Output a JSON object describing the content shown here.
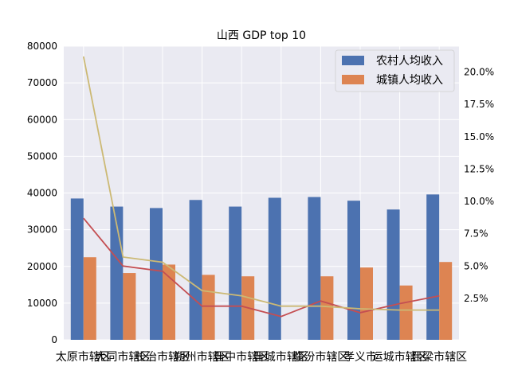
{
  "chart_data": {
    "type": "bar",
    "title": "山西 GDP top 10",
    "categories": [
      "太原市辖区",
      "大同市辖区",
      "长治市辖区",
      "朔州市辖区",
      "晋中市辖区",
      "晋城市辖区",
      "临汾市辖区",
      "孝义市",
      "运城市辖区",
      "吕梁市辖区"
    ],
    "series": [
      {
        "name": "农村人均收入",
        "axis": "left",
        "type": "bar",
        "color": "#4c72b0",
        "values": [
          38500,
          36300,
          35900,
          38100,
          36300,
          38700,
          38900,
          37900,
          35500,
          39600
        ]
      },
      {
        "name": "城镇人均收入",
        "axis": "left",
        "type": "bar",
        "color": "#dd8452",
        "values": [
          22500,
          18200,
          20500,
          17700,
          17300,
          null,
          17300,
          19700,
          14800,
          21200
        ]
      },
      {
        "type": "line",
        "axis": "right",
        "color": "#c44e52",
        "values": [
          0.087,
          0.05,
          0.046,
          0.019,
          0.019,
          0.011,
          0.023,
          0.014,
          0.021,
          0.027
        ]
      },
      {
        "type": "line",
        "axis": "right",
        "color": "#ccb974",
        "values": [
          0.212,
          0.057,
          0.053,
          0.031,
          0.027,
          0.019,
          0.019,
          0.017,
          0.016,
          0.016
        ]
      }
    ],
    "ylim": [
      0,
      80000
    ],
    "yticks": [
      "0",
      "10000",
      "20000",
      "30000",
      "40000",
      "50000",
      "60000",
      "70000",
      "80000"
    ],
    "y2lim": [
      -0.007,
      0.22
    ],
    "y2ticks": [
      "2.5%",
      "5.0%",
      "7.5%",
      "10.0%",
      "12.5%",
      "15.0%",
      "17.5%",
      "20.0%"
    ],
    "y2tick_values": [
      0.025,
      0.05,
      0.075,
      0.1,
      0.125,
      0.15,
      0.175,
      0.2
    ],
    "grid": true,
    "legend": "top-right",
    "background": "#eaeaf2"
  }
}
